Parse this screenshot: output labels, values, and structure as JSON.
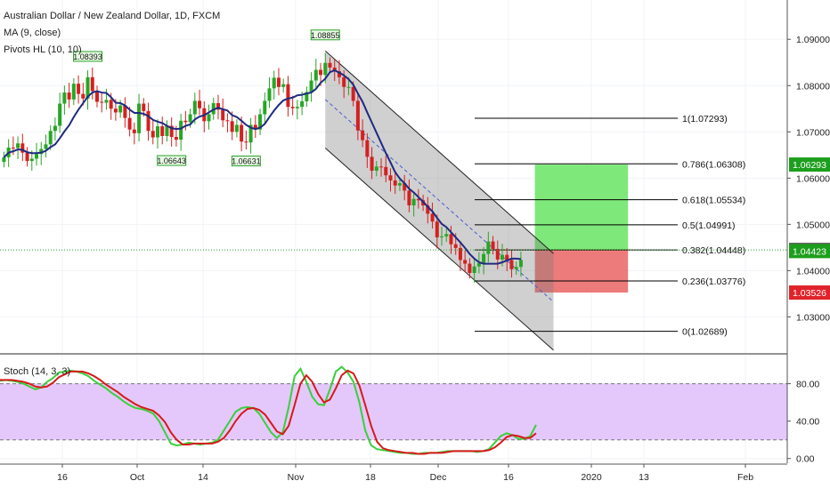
{
  "header": {
    "symbol_title": "Australian Dollar / New Zealand Dollar, 1D, FXCM",
    "indicator_ma": "MA (9, close)",
    "indicator_pivots": "Pivots HL (10, 10)"
  },
  "stoch_title": "Stoch (14, 3, 3)",
  "price_axis": {
    "ticks": [
      "1.09000",
      "1.08000",
      "1.07000",
      "1.06000",
      "1.05000",
      "1.04000",
      "1.03000"
    ],
    "tick_values": [
      1.09,
      1.08,
      1.07,
      1.06,
      1.05,
      1.04,
      1.03
    ],
    "range": [
      1.0222,
      1.0985
    ]
  },
  "price_badges": [
    {
      "label": "1.06293",
      "value": 1.06293,
      "color": "#1e9e1e"
    },
    {
      "label": "1.04448",
      "value": 1.04448,
      "color": "#5d5d5d"
    },
    {
      "label": "1.04423",
      "value": 1.04423,
      "color": "#1e9e1e"
    },
    {
      "label": "1.03526",
      "value": 1.03526,
      "color": "#e0232a"
    }
  ],
  "stoch_axis": {
    "ticks": [
      "80.00",
      "40.00",
      "0.00"
    ],
    "tick_values": [
      80,
      40,
      0
    ],
    "range": [
      -5,
      110
    ]
  },
  "time_axis": [
    "16",
    "Oct",
    "14",
    "Nov",
    "18",
    "Dec",
    "16",
    "2020",
    "13",
    "Feb"
  ],
  "pivot_labels": [
    {
      "label": "1.08393",
      "bar": 18,
      "value": 1.0839,
      "kind": "high"
    },
    {
      "label": "1.08855",
      "bar": 69,
      "value": 1.08855,
      "kind": "high"
    },
    {
      "label": "1.06643",
      "bar": 36,
      "value": 1.0664,
      "kind": "low"
    },
    {
      "label": "1.06631",
      "bar": 52,
      "value": 1.0663,
      "kind": "low"
    }
  ],
  "fib_levels": [
    {
      "label": "1(1.07293)",
      "value": 1.07293
    },
    {
      "label": "0.786(1.06308)",
      "value": 1.06308
    },
    {
      "label": "0.618(1.05534)",
      "value": 1.05534
    },
    {
      "label": "0.5(1.04991)",
      "value": 1.04991
    },
    {
      "label": "0.382(1.04448)",
      "value": 1.04448
    },
    {
      "label": "0.236(1.03776)",
      "value": 1.03776
    },
    {
      "label": "0(1.02689)",
      "value": 1.02689
    }
  ],
  "position_tool": {
    "entry": 1.04448,
    "target": 1.06293,
    "stop": 1.03526,
    "bar_start": 114,
    "bar_end": 134,
    "profit_color": "#7ee87a",
    "loss_color": "#ee7b7b"
  },
  "channel": {
    "upper_start": [
      69,
      1.0875
    ],
    "upper_end": [
      118,
      1.0437
    ],
    "lower_start": [
      69,
      1.0665
    ],
    "lower_end": [
      118,
      1.0228
    ]
  },
  "colors": {
    "up": "#26a626",
    "down": "#d42020",
    "ma": "#1f2a80",
    "stoch_k": "#3bcf3b",
    "stoch_d": "#d61a1a",
    "stoch_band": "#e4c8fb"
  },
  "chart_data": {
    "type": "line",
    "series": [
      {
        "name": "price_close",
        "values": [
          1.0645,
          1.0666,
          1.0665,
          1.0675,
          1.0655,
          1.0637,
          1.0642,
          1.0652,
          1.0663,
          1.0673,
          1.0702,
          1.0713,
          1.0761,
          1.0785,
          1.077,
          1.0804,
          1.0782,
          1.0772,
          1.0818,
          1.0788,
          1.0765,
          1.0763,
          1.0769,
          1.075,
          1.0742,
          1.0757,
          1.073,
          1.0705,
          1.0697,
          1.0761,
          1.0745,
          1.0702,
          1.0688,
          1.0712,
          1.0691,
          1.0713,
          1.0689,
          1.0683,
          1.0724,
          1.0721,
          1.0738,
          1.0767,
          1.0751,
          1.0723,
          1.0738,
          1.0762,
          1.0748,
          1.0725,
          1.0723,
          1.07,
          1.0715,
          1.0679,
          1.0677,
          1.0715,
          1.0705,
          1.0738,
          1.0767,
          1.0794,
          1.0817,
          1.0797,
          1.0803,
          1.0754,
          1.0751,
          1.0754,
          1.0766,
          1.0786,
          1.0811,
          1.0834,
          1.0823,
          1.0849,
          1.0839,
          1.0831,
          1.0818,
          1.0797,
          1.0797,
          1.0767,
          1.0703,
          1.0682,
          1.0646,
          1.0616,
          1.0625,
          1.0624,
          1.0606,
          1.0595,
          1.0584,
          1.0589,
          1.0573,
          1.0541,
          1.0555,
          1.0552,
          1.0541,
          1.0523,
          1.0506,
          1.0472,
          1.0474,
          1.0479,
          1.0457,
          1.0449,
          1.0423,
          1.0415,
          1.0395,
          1.0409,
          1.0416,
          1.0436,
          1.0463,
          1.0447,
          1.0424,
          1.0434,
          1.0423,
          1.0403,
          1.0408,
          1.0423
        ],
        "note_hidden": false
      },
      {
        "name": "ma_9",
        "values": [
          1.0645,
          1.0655,
          1.0658,
          1.0662,
          1.0661,
          1.0656,
          1.0654,
          1.0654,
          1.0655,
          1.0659,
          1.0667,
          1.0673,
          1.0686,
          1.0701,
          1.0714,
          1.0732,
          1.0748,
          1.0762,
          1.0776,
          1.0785,
          1.0788,
          1.0785,
          1.0784,
          1.0775,
          1.0763,
          1.0762,
          1.0757,
          1.0748,
          1.0741,
          1.0741,
          1.0739,
          1.0734,
          1.0726,
          1.0722,
          1.0719,
          1.0713,
          1.0708,
          1.0706,
          1.0707,
          1.0713,
          1.0716,
          1.0727,
          1.0733,
          1.0736,
          1.0742,
          1.0748,
          1.0752,
          1.0749,
          1.0746,
          1.0736,
          1.0732,
          1.0724,
          1.0715,
          1.0709,
          1.0706,
          1.0709,
          1.0717,
          1.0732,
          1.0746,
          1.0758,
          1.0768,
          1.0772,
          1.0774,
          1.0779,
          1.078,
          1.0783,
          1.0785,
          1.0793,
          1.0806,
          1.0815,
          1.0829,
          1.0833,
          1.0828,
          1.0822,
          1.0814,
          1.0802,
          1.0783,
          1.0765,
          1.0742,
          1.072,
          1.0698,
          1.0676,
          1.0654,
          1.0634,
          1.0613,
          1.0599,
          1.0589,
          1.0577,
          1.0569,
          1.0559,
          1.0549,
          1.0538,
          1.0528,
          1.0514,
          1.0501,
          1.0494,
          1.0483,
          1.0472,
          1.0461,
          1.0449,
          1.0436,
          1.0426,
          1.0418,
          1.0415,
          1.0415,
          1.0415,
          1.0415,
          1.0418,
          1.0422,
          1.0426,
          1.0426,
          1.0425
        ]
      },
      {
        "name": "stoch_k",
        "values": [
          83,
          84,
          83,
          82,
          80,
          77,
          74,
          76,
          82,
          86,
          92,
          93,
          94,
          93,
          91,
          88,
          83,
          79,
          75,
          70,
          66,
          61,
          57,
          54,
          53,
          51,
          48,
          40,
          28,
          16,
          14,
          15,
          17,
          16,
          15,
          16,
          17,
          20,
          30,
          40,
          50,
          54,
          55,
          54,
          48,
          38,
          28,
          22,
          28,
          55,
          88,
          96,
          82,
          66,
          58,
          57,
          74,
          93,
          98,
          92,
          82,
          60,
          30,
          14,
          10,
          9,
          8,
          7,
          6,
          6,
          5,
          5,
          6,
          6,
          6,
          7,
          8,
          8,
          8,
          8,
          8,
          7,
          8,
          10,
          17,
          24,
          27,
          25,
          21,
          21,
          24,
          36
        ]
      },
      {
        "name": "stoch_d",
        "values": [
          84,
          84,
          84,
          83,
          82,
          80,
          77,
          76,
          77,
          81,
          87,
          90,
          93,
          93,
          93,
          91,
          88,
          84,
          79,
          75,
          71,
          66,
          62,
          58,
          55,
          53,
          51,
          46,
          39,
          28,
          20,
          15,
          15,
          16,
          16,
          16,
          16,
          18,
          22,
          30,
          40,
          48,
          53,
          54,
          52,
          47,
          38,
          29,
          26,
          35,
          57,
          80,
          89,
          82,
          69,
          60,
          63,
          75,
          89,
          94,
          91,
          78,
          57,
          35,
          18,
          11,
          9,
          8,
          7,
          6,
          6,
          5,
          5,
          6,
          6,
          6,
          7,
          8,
          8,
          8,
          8,
          8,
          8,
          9,
          12,
          17,
          23,
          25,
          24,
          22,
          22,
          27
        ]
      }
    ],
    "xlabel": "",
    "ylabel": "",
    "ylim": [
      1.0222,
      1.0985
    ]
  }
}
